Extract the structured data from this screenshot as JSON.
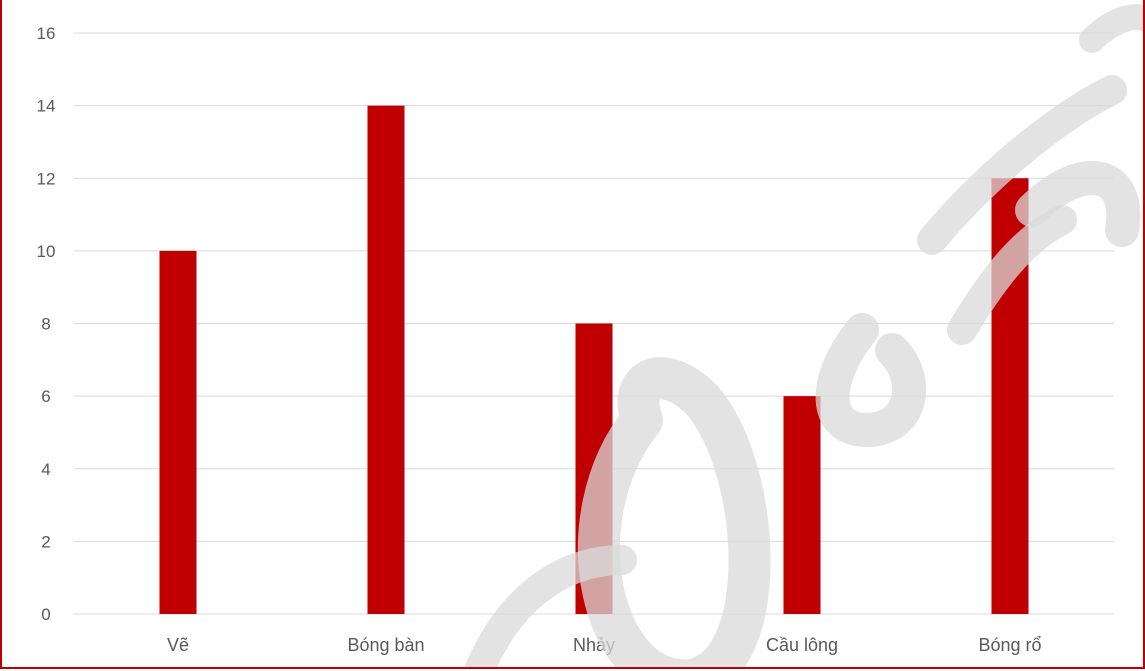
{
  "chart_data": {
    "type": "bar",
    "title": "",
    "xlabel": "",
    "ylabel": "",
    "categories": [
      "Vẽ",
      "Bóng bàn",
      "Nhảy",
      "Cầu lông",
      "Bóng rổ"
    ],
    "values": [
      10,
      14,
      8,
      6,
      12
    ],
    "ylim": [
      0,
      16
    ],
    "yticks": [
      0,
      2,
      4,
      6,
      8,
      10,
      12,
      14,
      16
    ],
    "grid": true,
    "legend": "none",
    "colors": {
      "bar": "#c00000",
      "grid": "#d9d9d9",
      "frame": "#c00000",
      "text": "#595959",
      "watermark": "#d9d9d9"
    }
  }
}
